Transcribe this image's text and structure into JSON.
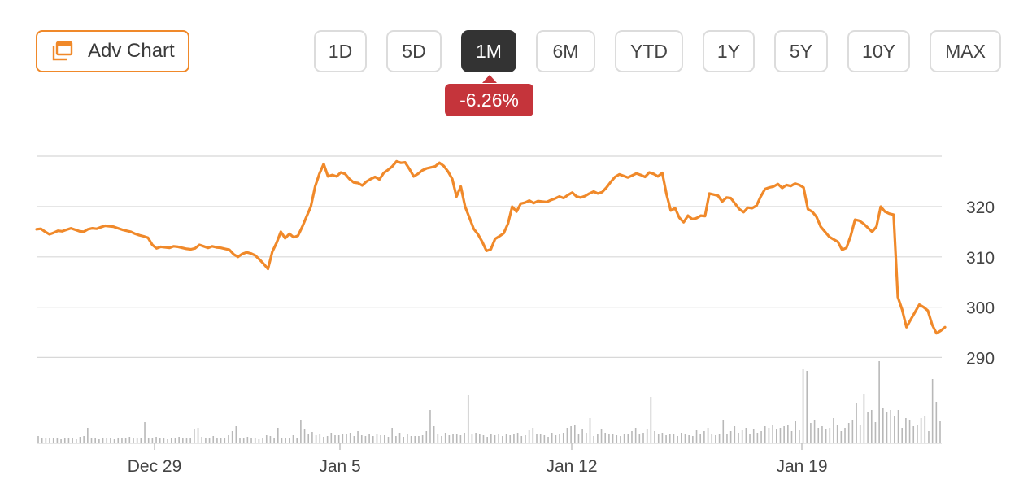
{
  "toolbar": {
    "adv_chart_label": "Adv Chart",
    "accent_color": "#f0892a",
    "ranges": [
      "1D",
      "5D",
      "1M",
      "6M",
      "YTD",
      "1Y",
      "5Y",
      "10Y",
      "MAX"
    ],
    "active_range": "1M"
  },
  "change_badge": {
    "text": "-6.26%",
    "color": "#c5343b"
  },
  "chart_data": {
    "type": "line",
    "line_color": "#f0892a",
    "x_ticks": [
      "Dec 29",
      "Jan 5",
      "Jan 12",
      "Jan 19"
    ],
    "y_ticks": [
      320,
      310,
      300,
      290
    ],
    "ylim": [
      290,
      332
    ],
    "grid": true,
    "price_series": [
      315.5,
      315.6,
      315.0,
      314.5,
      314.8,
      315.2,
      315.1,
      315.4,
      315.7,
      315.4,
      315.1,
      315.0,
      315.5,
      315.7,
      315.6,
      315.9,
      316.2,
      316.1,
      316.0,
      315.7,
      315.4,
      315.2,
      315.0,
      314.6,
      314.3,
      314.1,
      313.8,
      312.4,
      311.7,
      312.0,
      311.9,
      311.8,
      312.1,
      312.0,
      311.8,
      311.6,
      311.5,
      311.7,
      312.4,
      312.1,
      311.8,
      312.1,
      311.9,
      311.8,
      311.6,
      311.4,
      310.5,
      310.0,
      310.6,
      310.9,
      310.7,
      310.3,
      309.5,
      308.6,
      307.6,
      311.0,
      312.8,
      315.0,
      313.7,
      314.6,
      313.9,
      314.2,
      316.0,
      318.0,
      320.0,
      324.0,
      326.5,
      328.5,
      326.0,
      326.3,
      326.0,
      326.8,
      326.5,
      325.5,
      324.8,
      324.7,
      324.2,
      325.0,
      325.5,
      325.9,
      325.4,
      326.7,
      327.3,
      328.0,
      329.0,
      328.7,
      328.8,
      327.5,
      326.0,
      326.5,
      327.2,
      327.6,
      327.8,
      328.0,
      328.7,
      328.1,
      327.0,
      325.5,
      322.0,
      324.0,
      320.0,
      317.8,
      315.6,
      314.5,
      313.0,
      311.2,
      311.5,
      313.6,
      314.1,
      314.7,
      316.6,
      320.0,
      319.0,
      320.6,
      320.8,
      321.2,
      320.7,
      321.1,
      321.0,
      320.9,
      321.3,
      321.6,
      322.0,
      321.7,
      322.3,
      322.8,
      322.0,
      321.8,
      322.1,
      322.6,
      323.0,
      322.6,
      322.9,
      323.8,
      324.9,
      325.9,
      326.4,
      326.1,
      325.8,
      326.2,
      326.6,
      326.3,
      325.9,
      326.8,
      326.5,
      326.0,
      326.7,
      322.5,
      319.2,
      319.7,
      317.8,
      316.9,
      318.2,
      317.5,
      317.7,
      318.2,
      318.1,
      322.6,
      322.4,
      322.2,
      321.0,
      321.8,
      321.7,
      320.6,
      319.5,
      318.9,
      319.8,
      319.7,
      320.2,
      322.0,
      323.5,
      323.8,
      324.0,
      324.5,
      323.7,
      324.3,
      324.1,
      324.6,
      324.3,
      323.8,
      319.5,
      319.0,
      318.0,
      316.0,
      315.0,
      314.0,
      313.5,
      313.0,
      311.4,
      311.8,
      314.2,
      317.4,
      317.2,
      316.6,
      315.8,
      315.0,
      316.0,
      320.0,
      319.0,
      318.6,
      318.4,
      302.0,
      299.5,
      296.0,
      297.5,
      299.0,
      300.5,
      300.0,
      299.3,
      296.5,
      294.8,
      295.3,
      296.0
    ],
    "volume_series": [
      8,
      6,
      5,
      6,
      5,
      5,
      4,
      6,
      5,
      5,
      4,
      7,
      8,
      18,
      6,
      5,
      4,
      5,
      6,
      5,
      4,
      6,
      5,
      6,
      7,
      6,
      5,
      5,
      25,
      6,
      5,
      7,
      6,
      5,
      4,
      6,
      5,
      7,
      6,
      6,
      5,
      16,
      18,
      7,
      6,
      5,
      8,
      6,
      5,
      5,
      9,
      14,
      20,
      6,
      5,
      7,
      6,
      5,
      4,
      6,
      9,
      8,
      6,
      18,
      6,
      5,
      5,
      9,
      6,
      28,
      16,
      10,
      13,
      9,
      11,
      7,
      8,
      12,
      9,
      9,
      10,
      11,
      12,
      8,
      14,
      9,
      8,
      11,
      8,
      10,
      9,
      9,
      7,
      18,
      8,
      12,
      7,
      10,
      8,
      8,
      8,
      9,
      14,
      40,
      20,
      10,
      8,
      12,
      9,
      10,
      10,
      9,
      12,
      58,
      11,
      12,
      10,
      9,
      7,
      11,
      9,
      11,
      8,
      10,
      9,
      11,
      12,
      8,
      9,
      15,
      18,
      10,
      11,
      9,
      7,
      12,
      9,
      10,
      12,
      18,
      20,
      22,
      10,
      16,
      12,
      30,
      8,
      10,
      16,
      12,
      11,
      10,
      9,
      8,
      10,
      10,
      14,
      18,
      10,
      12,
      16,
      56,
      14,
      10,
      12,
      9,
      10,
      11,
      8,
      12,
      10,
      9,
      8,
      15,
      10,
      14,
      18,
      10,
      9,
      11,
      28,
      10,
      14,
      20,
      12,
      15,
      18,
      10,
      16,
      12,
      14,
      20,
      18,
      22,
      16,
      18,
      20,
      21,
      14,
      26,
      15,
      90,
      88,
      24,
      28,
      18,
      20,
      16,
      18,
      30,
      22,
      14,
      18,
      24,
      28,
      48,
      22,
      60,
      38,
      40,
      25,
      100,
      42,
      38,
      40,
      32,
      40,
      18,
      30,
      28,
      20,
      22,
      30,
      32,
      14,
      78,
      50,
      26
    ]
  }
}
